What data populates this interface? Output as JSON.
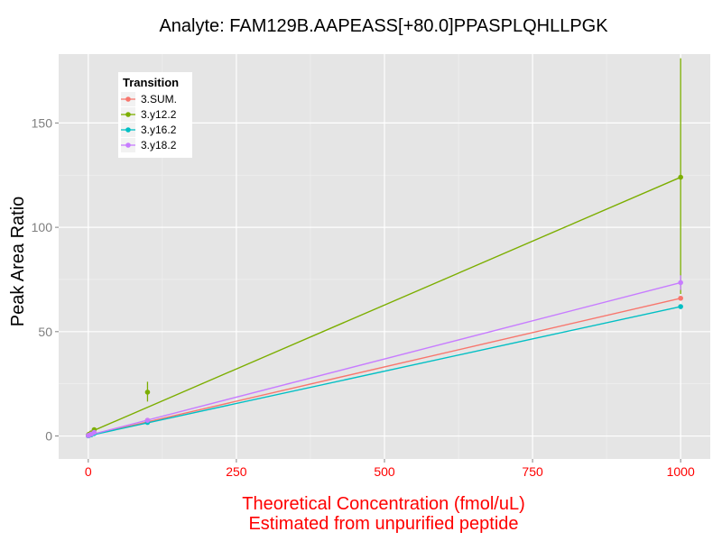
{
  "chart_data": {
    "type": "line",
    "title": "Analyte: FAM129B.AAPEASS[+80.0]PPASPLQHLLPGK",
    "xlabel": "Theoretical Concentration (fmol/uL)",
    "xlabel2": "Estimated from unpurified peptide",
    "ylabel": "Peak Area Ratio",
    "xlim": [
      -50,
      1050
    ],
    "ylim": [
      -11,
      183
    ],
    "x_ticks": [
      0,
      250,
      500,
      750,
      1000
    ],
    "y_ticks": [
      0,
      50,
      100,
      150
    ],
    "grid": true,
    "legend_title": "Transition",
    "legend_position": "top-left",
    "series": [
      {
        "name": "3.SUM.",
        "color": "#F8766D",
        "fit": [
          [
            0,
            0.2
          ],
          [
            1000,
            66
          ]
        ],
        "points": [
          {
            "x": 0,
            "y": 0.1,
            "lo": 0.1,
            "hi": 0.1
          },
          {
            "x": 1,
            "y": 0.3,
            "lo": 0.3,
            "hi": 0.3
          },
          {
            "x": 5,
            "y": 0.8,
            "lo": 0.8,
            "hi": 0.8
          },
          {
            "x": 10,
            "y": 1.5,
            "lo": 1.5,
            "hi": 1.5
          },
          {
            "x": 100,
            "y": 7.5,
            "lo": 7.5,
            "hi": 7.5
          },
          {
            "x": 1000,
            "y": 66,
            "lo": 66,
            "hi": 66
          }
        ]
      },
      {
        "name": "3.y12.2",
        "color": "#7CAE00",
        "fit": [
          [
            0,
            1.5
          ],
          [
            1000,
            124
          ]
        ],
        "points": [
          {
            "x": 0,
            "y": 0.4,
            "lo": 0.4,
            "hi": 0.4
          },
          {
            "x": 1,
            "y": 0.8,
            "lo": 0.8,
            "hi": 0.8
          },
          {
            "x": 5,
            "y": 1.5,
            "lo": 1.5,
            "hi": 1.5
          },
          {
            "x": 10,
            "y": 3,
            "lo": 3,
            "hi": 3
          },
          {
            "x": 100,
            "y": 21,
            "lo": 16.5,
            "hi": 26
          },
          {
            "x": 1000,
            "y": 124,
            "lo": 68,
            "hi": 181
          }
        ]
      },
      {
        "name": "3.y16.2",
        "color": "#00BFC4",
        "fit": [
          [
            0,
            0.1
          ],
          [
            1000,
            62
          ]
        ],
        "points": [
          {
            "x": 0,
            "y": 0.1,
            "lo": 0.1,
            "hi": 0.1
          },
          {
            "x": 1,
            "y": 0.2,
            "lo": 0.2,
            "hi": 0.2
          },
          {
            "x": 5,
            "y": 0.6,
            "lo": 0.6,
            "hi": 0.6
          },
          {
            "x": 10,
            "y": 1.2,
            "lo": 1.2,
            "hi": 1.2
          },
          {
            "x": 100,
            "y": 6.5,
            "lo": 6.5,
            "hi": 6.5
          },
          {
            "x": 1000,
            "y": 62,
            "lo": 62,
            "hi": 62
          }
        ]
      },
      {
        "name": "3.y18.2",
        "color": "#C77CFF",
        "fit": [
          [
            0,
            0.3
          ],
          [
            1000,
            73.5
          ]
        ],
        "points": [
          {
            "x": 0,
            "y": 0.2,
            "lo": 0.2,
            "hi": 0.2
          },
          {
            "x": 1,
            "y": 0.4,
            "lo": 0.4,
            "hi": 0.4
          },
          {
            "x": 5,
            "y": 0.9,
            "lo": 0.9,
            "hi": 0.9
          },
          {
            "x": 10,
            "y": 1.7,
            "lo": 1.7,
            "hi": 1.7
          },
          {
            "x": 100,
            "y": 7.5,
            "lo": 7.5,
            "hi": 7.5
          },
          {
            "x": 1000,
            "y": 73.5,
            "lo": 70,
            "hi": 77
          }
        ]
      }
    ]
  },
  "colors": {
    "panel_background": "#E5E5E5",
    "grid_major": "#FFFFFF",
    "grid_minor": "#F2F2F2",
    "x_text": "#FF0000",
    "y_tick_text": "#7F7F7F"
  }
}
